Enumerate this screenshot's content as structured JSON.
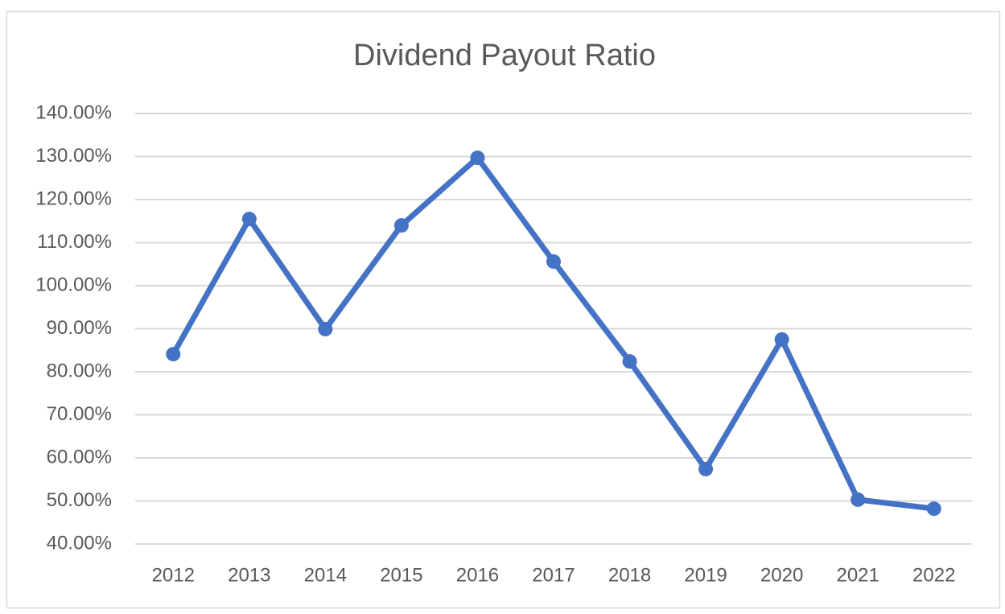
{
  "chart_data": {
    "type": "line",
    "title": "Dividend Payout Ratio",
    "categories": [
      "2012",
      "2013",
      "2014",
      "2015",
      "2016",
      "2017",
      "2018",
      "2019",
      "2020",
      "2021",
      "2022"
    ],
    "series": [
      {
        "color": "#4472c4",
        "values": [
          84.1,
          115.5,
          89.9,
          114,
          129.7,
          105.6,
          82.4,
          57.4,
          87.5,
          50.3,
          48.2
        ]
      }
    ],
    "ylim": [
      40,
      140
    ],
    "yticks": [
      {
        "value": 40,
        "label": "40.00%"
      },
      {
        "value": 50,
        "label": "50.00%"
      },
      {
        "value": 60,
        "label": "60.00%"
      },
      {
        "value": 70,
        "label": "70.00%"
      },
      {
        "value": 80,
        "label": "80.00%"
      },
      {
        "value": 90,
        "label": "90.00%"
      },
      {
        "value": 100,
        "label": "100.00%"
      },
      {
        "value": 110,
        "label": "110.00%"
      },
      {
        "value": 120,
        "label": "120.00%"
      },
      {
        "value": 130,
        "label": "130.00%"
      },
      {
        "value": 140,
        "label": "140.00%"
      }
    ],
    "grid": true,
    "markers": true
  }
}
